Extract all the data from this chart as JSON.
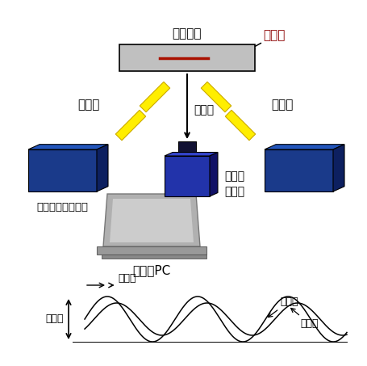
{
  "bg_color": "#ffffff",
  "sample_label": "サンプル",
  "defect_label": "欠陥部",
  "kijunha_label": "基準波",
  "reflected_label": "反射波",
  "flash_label": "フラッシュランプ",
  "camera_label": "赤外線\nカメラ",
  "pc_label": "測定用PC",
  "temp_diff_label": "温度差",
  "phase_diff_label": "位相差",
  "kijunha_wave_label": "基準波",
  "hansha_wave_label": "反射波",
  "sample_color": "#c0c0c0",
  "defect_color": "#aa1100",
  "yellow_color": "#ffee00",
  "yellow_edge": "#ccaa00",
  "lamp_front": "#1a3a8a",
  "lamp_side": "#0d2060",
  "lamp_top": "#2255bb",
  "cam_front": "#2233aa",
  "cam_side": "#111166",
  "cam_top": "#3344cc",
  "cam_head_front": "#111155",
  "pc_body": "#aaaaaa",
  "pc_screen": "#c8c8c8",
  "pc_base": "#888888"
}
